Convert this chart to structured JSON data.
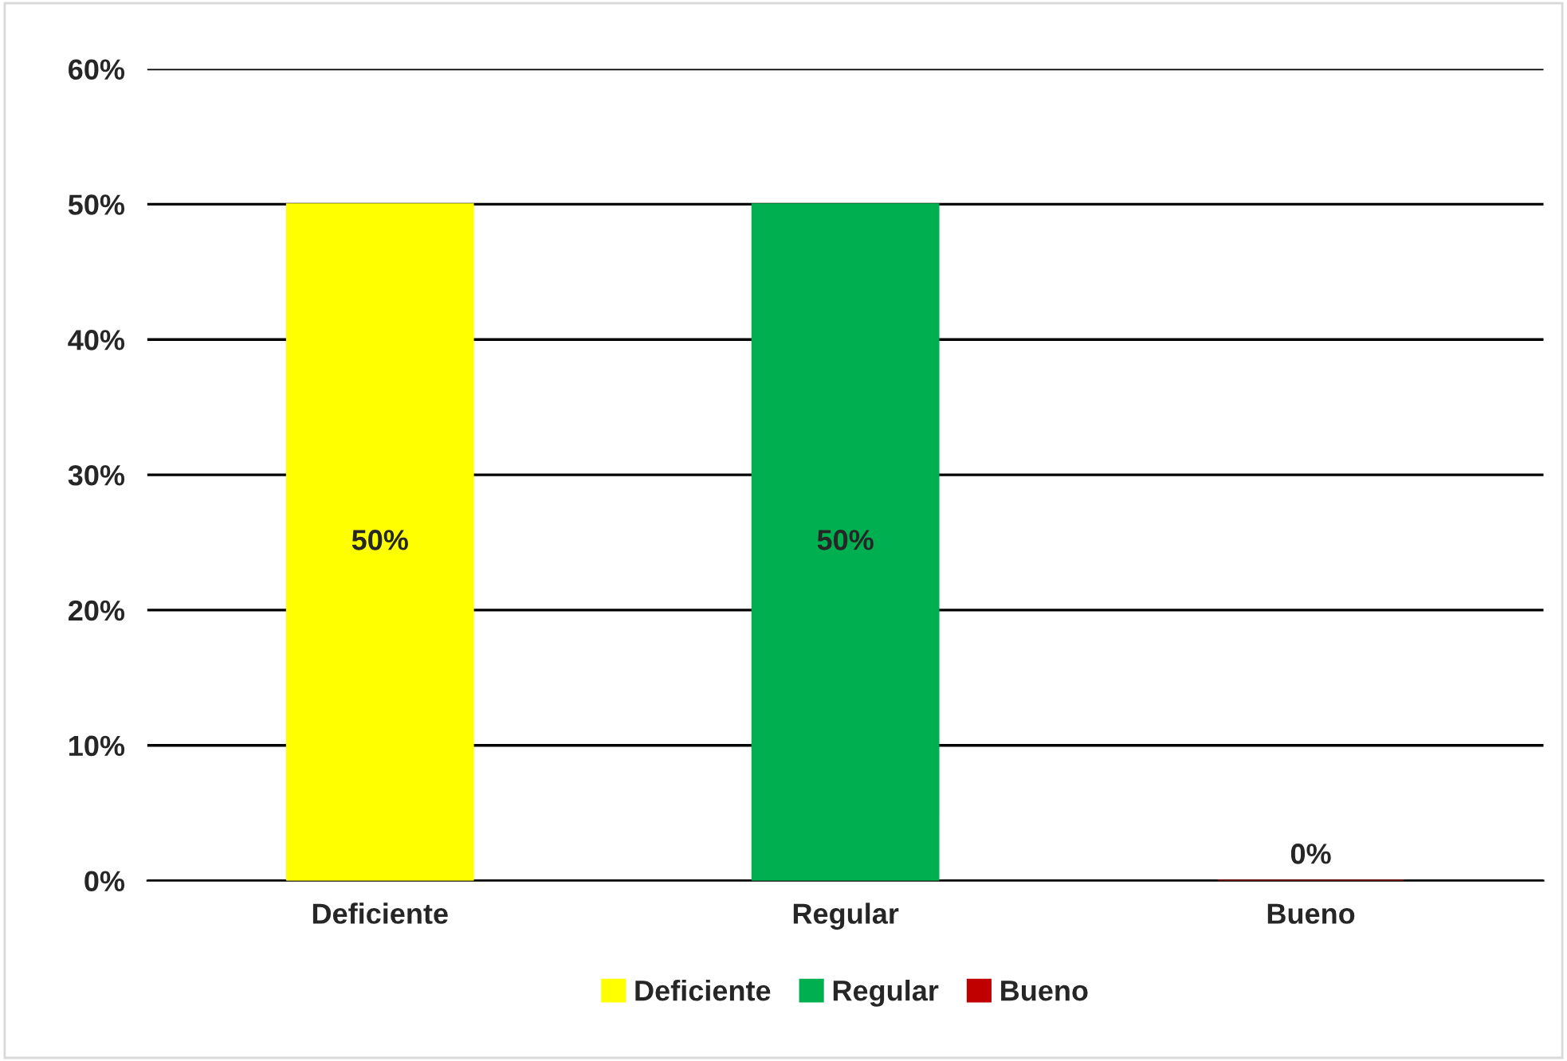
{
  "chart_data": {
    "type": "bar",
    "categories": [
      "Deficiente",
      "Regular",
      "Bueno"
    ],
    "series": [
      {
        "name": "Deficiente",
        "color": "#ffff00",
        "values": [
          50,
          null,
          null
        ],
        "value_labels": [
          "50%",
          null,
          null
        ]
      },
      {
        "name": "Regular",
        "color": "#00b050",
        "values": [
          null,
          50,
          null
        ],
        "value_labels": [
          null,
          "50%",
          null
        ]
      },
      {
        "name": "Bueno",
        "color": "#c00000",
        "values": [
          null,
          null,
          0
        ],
        "value_labels": [
          null,
          null,
          "0%"
        ]
      }
    ],
    "ylim": [
      0,
      60
    ],
    "yticks": [
      {
        "value": 0,
        "label": "0%"
      },
      {
        "value": 10,
        "label": "10%"
      },
      {
        "value": 20,
        "label": "20%"
      },
      {
        "value": 30,
        "label": "30%"
      },
      {
        "value": 40,
        "label": "40%"
      },
      {
        "value": 50,
        "label": "50%"
      },
      {
        "value": 60,
        "label": "60%"
      }
    ],
    "grid": "y",
    "legend": "bottom"
  }
}
